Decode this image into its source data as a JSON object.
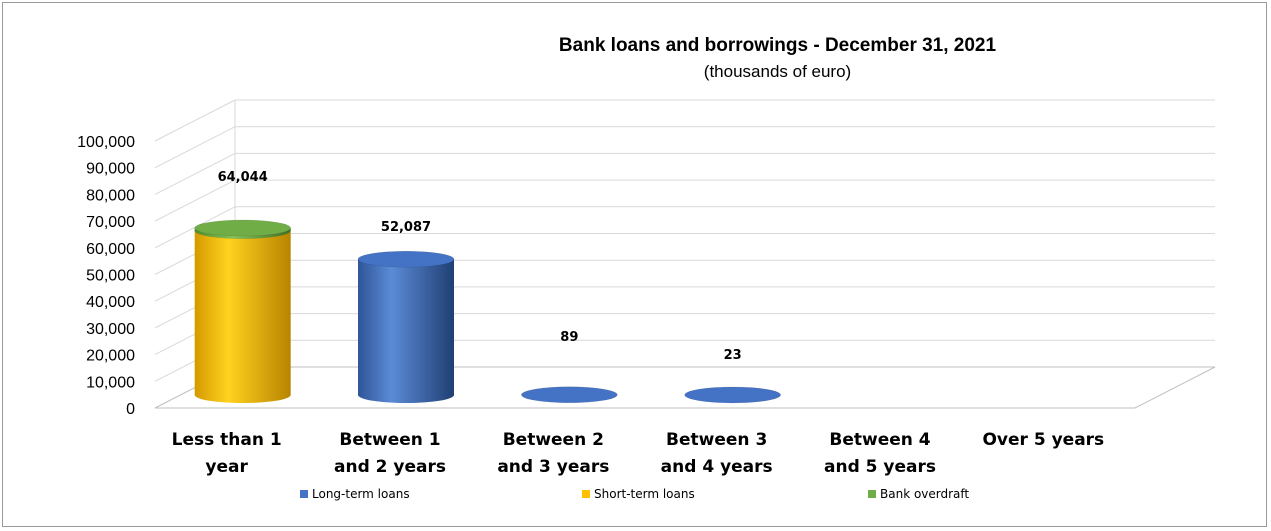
{
  "chart_data": {
    "type": "bar",
    "title": "Bank loans and borrowings - December 31, 2021",
    "subtitle": "(thousands of euro)",
    "categories": [
      [
        "Less than 1",
        "year"
      ],
      [
        "Between 1",
        "and 2 years"
      ],
      [
        "Between 2",
        "and 3 years"
      ],
      [
        "Between 3",
        "and 4 years"
      ],
      [
        "Between 4",
        "and 5 years"
      ],
      [
        "Over 5 years"
      ]
    ],
    "series": [
      {
        "name": "Long-term loans",
        "color": "#4472c4",
        "values": [
          0,
          52087,
          89,
          23,
          0,
          0
        ]
      },
      {
        "name": "Short-term loans",
        "color": "#ffc000",
        "values": [
          63000,
          0,
          0,
          0,
          0,
          0
        ]
      },
      {
        "name": "Bank overdraft",
        "color": "#70ad47",
        "values": [
          1044,
          0,
          0,
          0,
          0,
          0
        ]
      }
    ],
    "data_labels": [
      "64,044",
      "52,087",
      "89",
      "23",
      "",
      ""
    ],
    "yticks": [
      "0",
      "10,000",
      "20,000",
      "30,000",
      "40,000",
      "50,000",
      "60,000",
      "70,000",
      "80,000",
      "90,000",
      "100,000"
    ],
    "ylim": [
      0,
      100000
    ],
    "stacked": true,
    "style": "3d-cylinder",
    "grid": true,
    "legend": "bottom"
  }
}
